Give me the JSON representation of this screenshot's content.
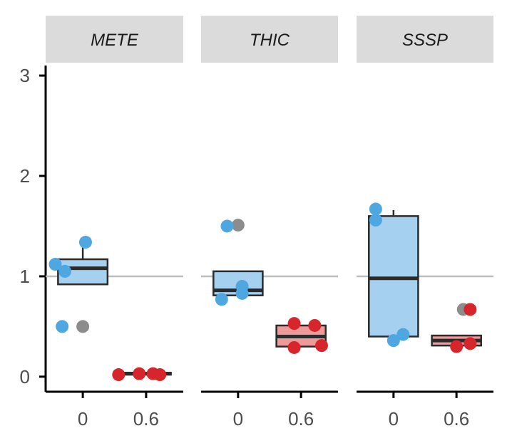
{
  "chart_data": {
    "type": "box",
    "facets": [
      "METE",
      "THIC",
      "SSSP"
    ],
    "categories": [
      "0",
      "0.6"
    ],
    "ylim": [
      -0.15,
      3.1
    ],
    "yticks": [
      0,
      1,
      2,
      3
    ],
    "reference_line": 1,
    "colors": {
      "box_fill_0": "#a6d0ef",
      "box_fill_06": "#ef9a9a",
      "point_0": "#4ea7e0",
      "point_06": "#d7262b",
      "point_outlier_shadow": "#8c8c8c",
      "strip_bg": "#dcdbdc",
      "ref_line": "#bdbdbd",
      "box_stroke": "#2b2b2b"
    },
    "panels": [
      {
        "facet": "METE",
        "boxes": [
          {
            "category": "0",
            "q1": 0.92,
            "median": 1.08,
            "q3": 1.17,
            "whisker_low": 0.92,
            "whisker_high": 1.34
          },
          {
            "category": "0.6",
            "q1": 0.02,
            "median": 0.03,
            "q3": 0.04,
            "whisker_low": 0.02,
            "whisker_high": 0.04
          }
        ],
        "points": [
          {
            "category": "0",
            "x_offset": 0.02,
            "y": 1.34,
            "group": "0"
          },
          {
            "category": "0",
            "x_offset": -0.2,
            "y": 1.12,
            "group": "0"
          },
          {
            "category": "0",
            "x_offset": -0.13,
            "y": 1.05,
            "group": "0"
          },
          {
            "category": "0",
            "x_offset": 0.0,
            "y": 0.5,
            "group": "shadow"
          },
          {
            "category": "0",
            "x_offset": -0.15,
            "y": 0.5,
            "group": "0"
          },
          {
            "category": "0.6",
            "x_offset": -0.2,
            "y": 0.02,
            "group": "0.6"
          },
          {
            "category": "0.6",
            "x_offset": -0.05,
            "y": 0.03,
            "group": "0.6"
          },
          {
            "category": "0.6",
            "x_offset": 0.05,
            "y": 0.03,
            "group": "0.6"
          },
          {
            "category": "0.6",
            "x_offset": 0.1,
            "y": 0.02,
            "group": "0.6"
          }
        ]
      },
      {
        "facet": "THIC",
        "boxes": [
          {
            "category": "0",
            "q1": 0.81,
            "median": 0.86,
            "q3": 1.05,
            "whisker_low": 0.81,
            "whisker_high": 1.05
          },
          {
            "category": "0.6",
            "q1": 0.3,
            "median": 0.4,
            "q3": 0.51,
            "whisker_low": 0.3,
            "whisker_high": 0.51
          }
        ],
        "points": [
          {
            "category": "0",
            "x_offset": 0.0,
            "y": 1.51,
            "group": "shadow"
          },
          {
            "category": "0",
            "x_offset": -0.08,
            "y": 1.5,
            "group": "0"
          },
          {
            "category": "0",
            "x_offset": 0.03,
            "y": 0.9,
            "group": "0"
          },
          {
            "category": "0",
            "x_offset": 0.03,
            "y": 0.83,
            "group": "0"
          },
          {
            "category": "0",
            "x_offset": -0.12,
            "y": 0.77,
            "group": "0"
          },
          {
            "category": "0.6",
            "x_offset": -0.05,
            "y": 0.53,
            "group": "0.6"
          },
          {
            "category": "0.6",
            "x_offset": 0.1,
            "y": 0.51,
            "group": "0.6"
          },
          {
            "category": "0.6",
            "x_offset": 0.15,
            "y": 0.31,
            "group": "0.6"
          },
          {
            "category": "0.6",
            "x_offset": -0.05,
            "y": 0.29,
            "group": "0.6"
          }
        ]
      },
      {
        "facet": "SSSP",
        "boxes": [
          {
            "category": "0",
            "q1": 0.4,
            "median": 0.98,
            "q3": 1.6,
            "whisker_low": 0.4,
            "whisker_high": 1.66
          },
          {
            "category": "0.6",
            "q1": 0.31,
            "median": 0.36,
            "q3": 0.41,
            "whisker_low": 0.31,
            "whisker_high": 0.41
          }
        ],
        "points": [
          {
            "category": "0",
            "x_offset": -0.13,
            "y": 1.67,
            "group": "0"
          },
          {
            "category": "0",
            "x_offset": -0.13,
            "y": 1.56,
            "group": "0"
          },
          {
            "category": "0",
            "x_offset": 0.07,
            "y": 0.42,
            "group": "0"
          },
          {
            "category": "0",
            "x_offset": 0.0,
            "y": 0.36,
            "group": "0"
          },
          {
            "category": "0.6",
            "x_offset": 0.05,
            "y": 0.67,
            "group": "shadow"
          },
          {
            "category": "0.6",
            "x_offset": 0.1,
            "y": 0.67,
            "group": "0.6"
          },
          {
            "category": "0.6",
            "x_offset": 0.0,
            "y": 0.3,
            "group": "0.6"
          },
          {
            "category": "0.6",
            "x_offset": 0.1,
            "y": 0.33,
            "group": "0.6"
          }
        ]
      }
    ]
  }
}
